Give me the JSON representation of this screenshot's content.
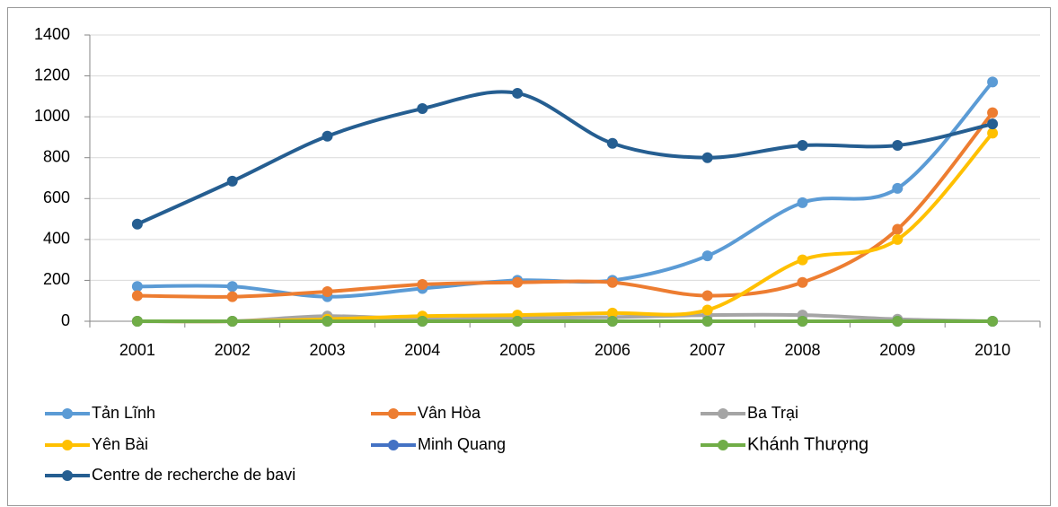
{
  "chart_data": {
    "type": "line",
    "categories": [
      "2001",
      "2002",
      "2003",
      "2004",
      "2005",
      "2006",
      "2007",
      "2008",
      "2009",
      "2010"
    ],
    "series": [
      {
        "name": "Tản Lĩnh",
        "color": "#5b9bd5",
        "values": [
          170,
          170,
          120,
          160,
          200,
          200,
          320,
          580,
          650,
          1170
        ]
      },
      {
        "name": "Vân Hòa",
        "color": "#ed7d31",
        "values": [
          125,
          120,
          145,
          180,
          190,
          190,
          125,
          190,
          450,
          1020
        ]
      },
      {
        "name": "Ba Trại",
        "color": "#a5a5a5",
        "values": [
          0,
          0,
          25,
          10,
          15,
          20,
          30,
          30,
          10,
          0
        ]
      },
      {
        "name": "Yên Bài",
        "color": "#ffc000",
        "values": [
          0,
          0,
          10,
          25,
          30,
          40,
          55,
          300,
          400,
          920
        ]
      },
      {
        "name": "Minh Quang",
        "color": "#4472c4",
        "values": [
          0,
          0,
          0,
          0,
          0,
          0,
          0,
          0,
          0,
          0
        ]
      },
      {
        "name": "Khánh Thượng",
        "color": "#70ad47",
        "values": [
          0,
          0,
          0,
          0,
          0,
          0,
          0,
          0,
          0,
          0
        ]
      },
      {
        "name": "Centre de recherche de bavi",
        "color": "#255e91",
        "values": [
          475,
          685,
          905,
          1040,
          1115,
          870,
          800,
          860,
          860,
          965
        ]
      }
    ],
    "ylim": [
      0,
      1400
    ],
    "yticks": [
      0,
      200,
      400,
      600,
      800,
      1000,
      1200,
      1400
    ],
    "grid": true,
    "legend": "bottom"
  }
}
